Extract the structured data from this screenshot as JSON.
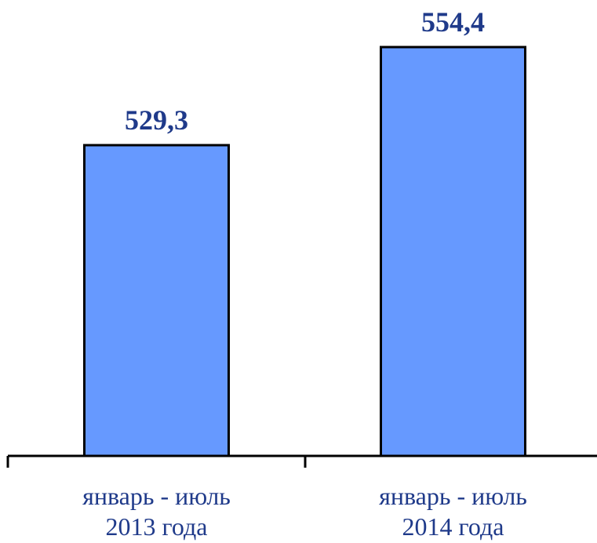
{
  "chart_data": {
    "type": "bar",
    "categories": [
      [
        "январь - июль",
        "2013 года"
      ],
      [
        "январь - июль",
        "2014 года"
      ]
    ],
    "values": [
      529.3,
      554.4
    ],
    "data_labels": [
      "529,3",
      "554,4"
    ],
    "title": "",
    "xlabel": "",
    "ylabel": "",
    "grid": false,
    "legend": "none",
    "colors": {
      "bar_fill": "#6699ff",
      "bar_stroke": "#000000",
      "data_label": "#1f3a8a",
      "category_label": "#1f3a8a"
    }
  }
}
